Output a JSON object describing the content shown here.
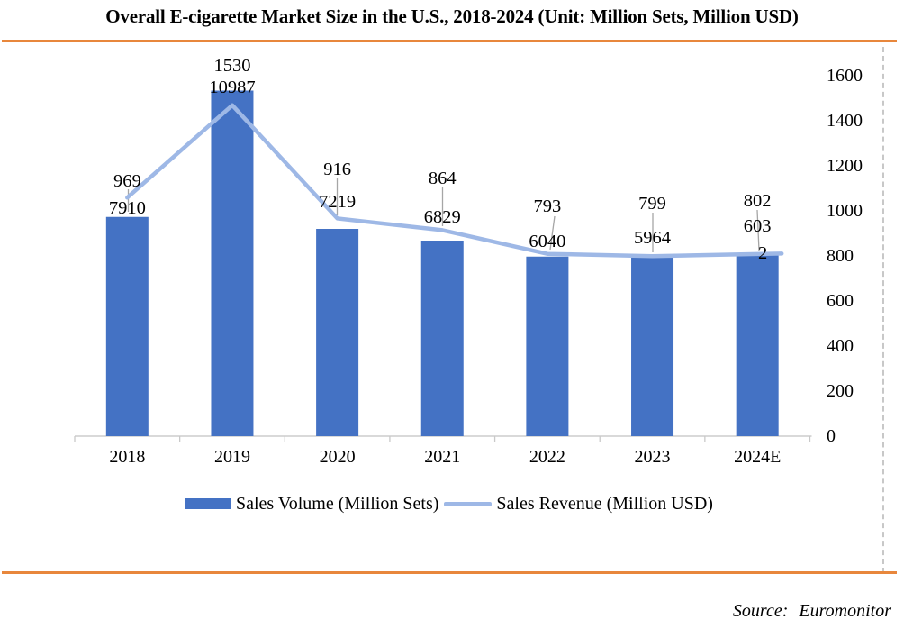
{
  "title": "Overall E-cigarette Market Size in the U.S., 2018-2024 (Unit: Million Sets, Million USD)",
  "source": {
    "label": "Source:",
    "value": "Euromonitor"
  },
  "colors": {
    "bar": "#4472C4",
    "line": "#9EB8E6",
    "accent_rule": "#E8873C",
    "axis_line": "#D9D9D9",
    "tick": "#C9C9C9",
    "leader": "#A6A6A6",
    "frame_dash": "#C8C8C8",
    "text": "#000000"
  },
  "legend": {
    "items": [
      {
        "label": "Sales Volume (Million Sets)",
        "swatch": "bar"
      },
      {
        "label": "Sales Revenue (Million USD)",
        "swatch": "line"
      }
    ]
  },
  "chart_data": {
    "type": "combo bar+line",
    "title": "Overall E-cigarette Market Size in the U.S., 2018-2024",
    "unit_note": "Unit: Million Sets, Million USD",
    "categories": [
      "2018",
      "2019",
      "2020",
      "2021",
      "2022",
      "2023",
      "2024E"
    ],
    "series": [
      {
        "name": "Sales Volume (Million Sets)",
        "legend_swatch": "bar",
        "values": [
          7910,
          10987,
          7219,
          6829,
          6040,
          5964,
          6032
        ]
      },
      {
        "name": "Sales Revenue (Million USD)",
        "legend_swatch": "line",
        "values": [
          969,
          1530,
          916,
          864,
          793,
          799,
          802
        ]
      }
    ],
    "data_labels": {
      "revenue": [
        "969",
        "1530",
        "916",
        "864",
        "793",
        "799",
        "802"
      ],
      "volume_lines": [
        [
          "7910"
        ],
        [
          "10987"
        ],
        [
          "7219"
        ],
        [
          "6829"
        ],
        [
          "6040"
        ],
        [
          "5964"
        ],
        [
          "603",
          "2"
        ]
      ]
    },
    "right_axis": {
      "min": 0,
      "max": 1600,
      "step": 200
    },
    "hidden_left_axis_for_line": {
      "min": 0,
      "max": 12000
    },
    "rendering_notes": "Bar heights follow the revenue values on the visible right axis; the line follows the volume values on a hidden left axis (0-12000). Each year is annotated with a revenue label above a volume label, connected by thin gray leader lines.",
    "legend_position": "bottom",
    "grid": false
  }
}
